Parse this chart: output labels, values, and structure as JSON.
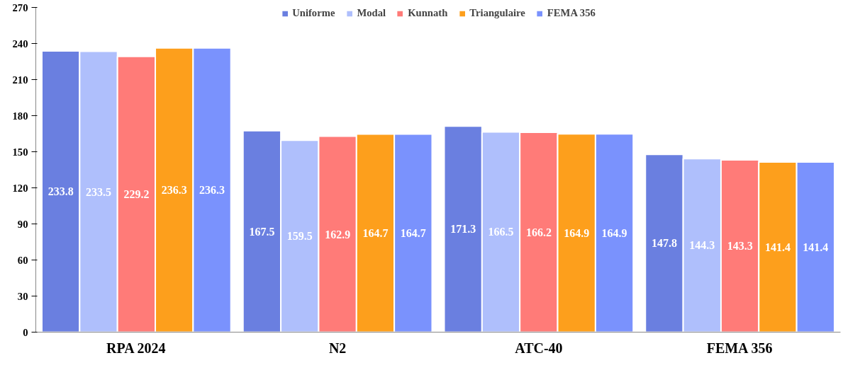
{
  "chart_data": {
    "type": "bar",
    "categories": [
      "RPA 2024",
      "N2",
      "ATC-40",
      "FEMA 356"
    ],
    "series": [
      {
        "name": "Uniforme",
        "color": "#6a7fe0",
        "values": [
          233.8,
          167.5,
          171.3,
          147.8
        ]
      },
      {
        "name": "Modal",
        "color": "#afbffc",
        "values": [
          233.5,
          159.5,
          166.5,
          144.3
        ]
      },
      {
        "name": "Kunnath",
        "color": "#ff7b78",
        "values": [
          229.2,
          162.9,
          166.2,
          143.3
        ]
      },
      {
        "name": "Triangulaire",
        "color": "#fd9f1c",
        "values": [
          236.3,
          164.7,
          164.9,
          141.4
        ]
      },
      {
        "name": "FEMA 356",
        "color": "#7a92fd",
        "values": [
          236.3,
          164.7,
          164.9,
          141.4
        ]
      }
    ],
    "ylim": [
      0,
      270
    ],
    "yticks": [
      0,
      30,
      60,
      90,
      120,
      150,
      180,
      210,
      240,
      270
    ],
    "grid": false,
    "legend": "top",
    "data_labels": true
  }
}
